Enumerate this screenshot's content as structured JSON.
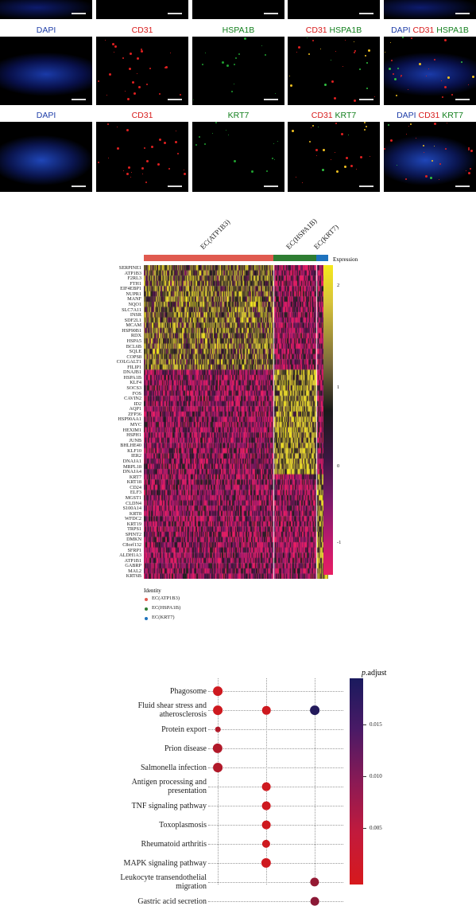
{
  "panel_a": {
    "rows": [
      {
        "labels": [
          "DAPI",
          "CD31",
          "HSPA1B",
          "CD31  HSPA1B",
          "DAPI  CD31  HSPA1B"
        ]
      },
      {
        "labels": [
          "DAPI",
          "CD31",
          "KRT7",
          "CD31  KRT7",
          "DAPI  CD31  KRT7"
        ]
      }
    ],
    "marker_words": {
      "dapi": "DAPI",
      "cd31": "CD31",
      "hspa1b": "HSPA1B",
      "krt7": "KRT7"
    }
  },
  "heatmap": {
    "clusters": [
      {
        "name": "EC(ATP1B3)",
        "color": "#e05a4f"
      },
      {
        "name": "EC(HSPA1B)",
        "color": "#2e7d32"
      },
      {
        "name": "EC(KRT7)",
        "color": "#1e73be"
      }
    ],
    "genes": [
      "SERPINE1",
      "ATP1B3",
      "F2RL3",
      "FTH1",
      "EIF4EBP1",
      "NUPR1",
      "MANF",
      "NQO1",
      "SLC7A11",
      "INSR",
      "SDF2L1",
      "MCAM",
      "HSP90B1",
      "RDX",
      "HSPA5",
      "BCL6B",
      "SQLE",
      "COPS8",
      "COLGALT1",
      "FILIP1",
      "DNAJB1",
      "HSPA1B",
      "KLF4",
      "SOCS3",
      "FOS",
      "CAVIN2",
      "ID2",
      "AQP1",
      "ZFP36",
      "HSP90AA1",
      "MYC",
      "HEXIM1",
      "HSPH1",
      "JUNB",
      "BHLHE40",
      "KLF10",
      "IER2",
      "DNAJA1",
      "MRPL18",
      "DNAJA4",
      "KRT7",
      "KRT18",
      "CD24",
      "ELF3",
      "MGST1",
      "CLDN4",
      "S100A14",
      "KRT8",
      "WFDC2",
      "KRT19",
      "TRPS1",
      "SPINT2",
      "DMKN",
      "C8orf132",
      "SFRP1",
      "ALDH1A3",
      "ATP1B1",
      "GABRP",
      "MAL2",
      "KRT6B"
    ],
    "colorbar_title": "Expression",
    "colorbar_ticks": [
      "2",
      "1",
      "0",
      "-1"
    ],
    "identity_title": "Identity",
    "identity_items": [
      "EC(ATP1B3)",
      "EC(HSPA1B)",
      "EC(KRT7)"
    ]
  },
  "chart_data": {
    "type": "scatter",
    "y_categories": [
      "Phagosome",
      "Fluid shear stress and\natherosclerosis",
      "Protein export",
      "Prion disease",
      "Salmonella infection",
      "Antigen processing and\npresentation",
      "TNF signaling pathway",
      "Toxoplasmosis",
      "Rheumatoid arthritis",
      "MAPK signaling pathway",
      "Leukocyte transendothelial\nmigration",
      "Gastric acid secretion"
    ],
    "points": [
      {
        "y": "Phagosome",
        "x_col": 1,
        "p_adjust": 0.001,
        "size": 3
      },
      {
        "y": "Fluid shear stress and\natherosclerosis",
        "x_col": 1,
        "p_adjust": 0.001,
        "size": 3
      },
      {
        "y": "Fluid shear stress and\natherosclerosis",
        "x_col": 2,
        "p_adjust": 0.001,
        "size": 2.5
      },
      {
        "y": "Fluid shear stress and\natherosclerosis",
        "x_col": 3,
        "p_adjust": 0.019,
        "size": 3
      },
      {
        "y": "Protein export",
        "x_col": 1,
        "p_adjust": 0.004,
        "size": 1
      },
      {
        "y": "Prion disease",
        "x_col": 1,
        "p_adjust": 0.004,
        "size": 3.2
      },
      {
        "y": "Salmonella infection",
        "x_col": 1,
        "p_adjust": 0.004,
        "size": 3
      },
      {
        "y": "Antigen processing and\npresentation",
        "x_col": 2,
        "p_adjust": 0.001,
        "size": 2.6
      },
      {
        "y": "TNF signaling pathway",
        "x_col": 2,
        "p_adjust": 0.001,
        "size": 2.6
      },
      {
        "y": "Toxoplasmosis",
        "x_col": 2,
        "p_adjust": 0.001,
        "size": 2.6
      },
      {
        "y": "Rheumatoid arthritis",
        "x_col": 2,
        "p_adjust": 0.001,
        "size": 2.4
      },
      {
        "y": "MAPK signaling pathway",
        "x_col": 2,
        "p_adjust": 0.001,
        "size": 3.2
      },
      {
        "y": "Leukocyte transendothelial\nmigration",
        "x_col": 3,
        "p_adjust": 0.007,
        "size": 2.8
      },
      {
        "y": "Gastric acid secretion",
        "x_col": 3,
        "p_adjust": 0.008,
        "size": 2.6
      }
    ],
    "legend_title_italic": "p",
    "legend_title_rest": ".adjust",
    "colorbar_ticks": [
      {
        "value": 0.015,
        "label": "0.015"
      },
      {
        "value": 0.01,
        "label": "0.010"
      },
      {
        "value": 0.005,
        "label": "0.005"
      }
    ],
    "color_range": [
      0.0,
      0.02
    ],
    "color_low": "#d7191c",
    "color_high": "#1a1a5e"
  }
}
